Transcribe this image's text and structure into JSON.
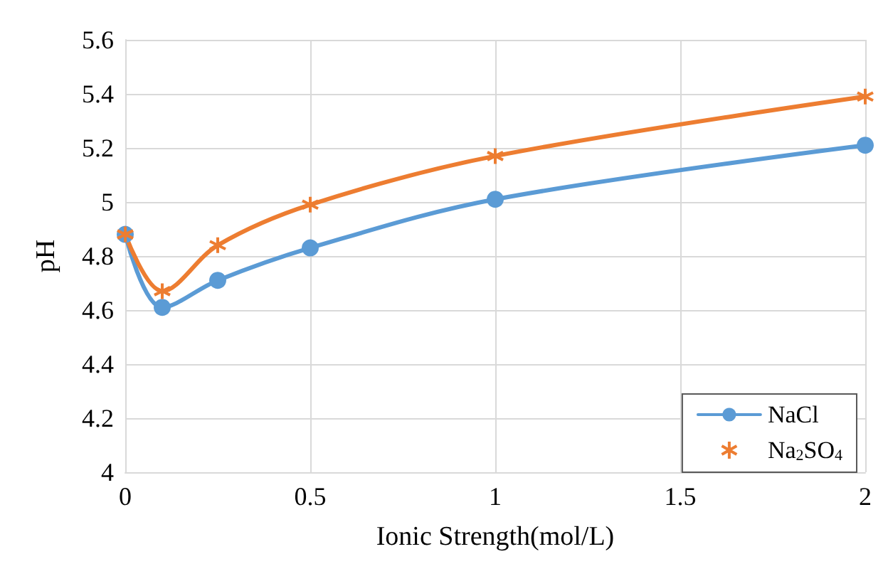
{
  "chart_data": {
    "type": "line",
    "xlabel": "Ionic Strength(mol/L)",
    "ylabel": "pH",
    "x": [
      0,
      0.1,
      0.25,
      0.5,
      1,
      2
    ],
    "series": [
      {
        "name": "NaCl",
        "color": "#5b9bd5",
        "marker": "circle",
        "values": [
          4.88,
          4.61,
          4.71,
          4.83,
          5.01,
          5.21
        ]
      },
      {
        "name": "Na$_{2}$SO$_{4}$",
        "color": "#ed7d31",
        "marker": "cross",
        "values": [
          4.88,
          4.67,
          4.84,
          4.99,
          5.17,
          5.39
        ]
      }
    ],
    "xlim": [
      0,
      2
    ],
    "xticks": [
      0,
      0.5,
      1,
      1.5,
      2
    ],
    "ylim": [
      4,
      5.6
    ],
    "yticks": [
      4,
      4.2,
      4.4,
      4.6,
      4.8,
      5,
      5.2,
      5.4,
      5.6
    ],
    "grid": true,
    "legend": "bottom right",
    "line_style": "solid"
  }
}
